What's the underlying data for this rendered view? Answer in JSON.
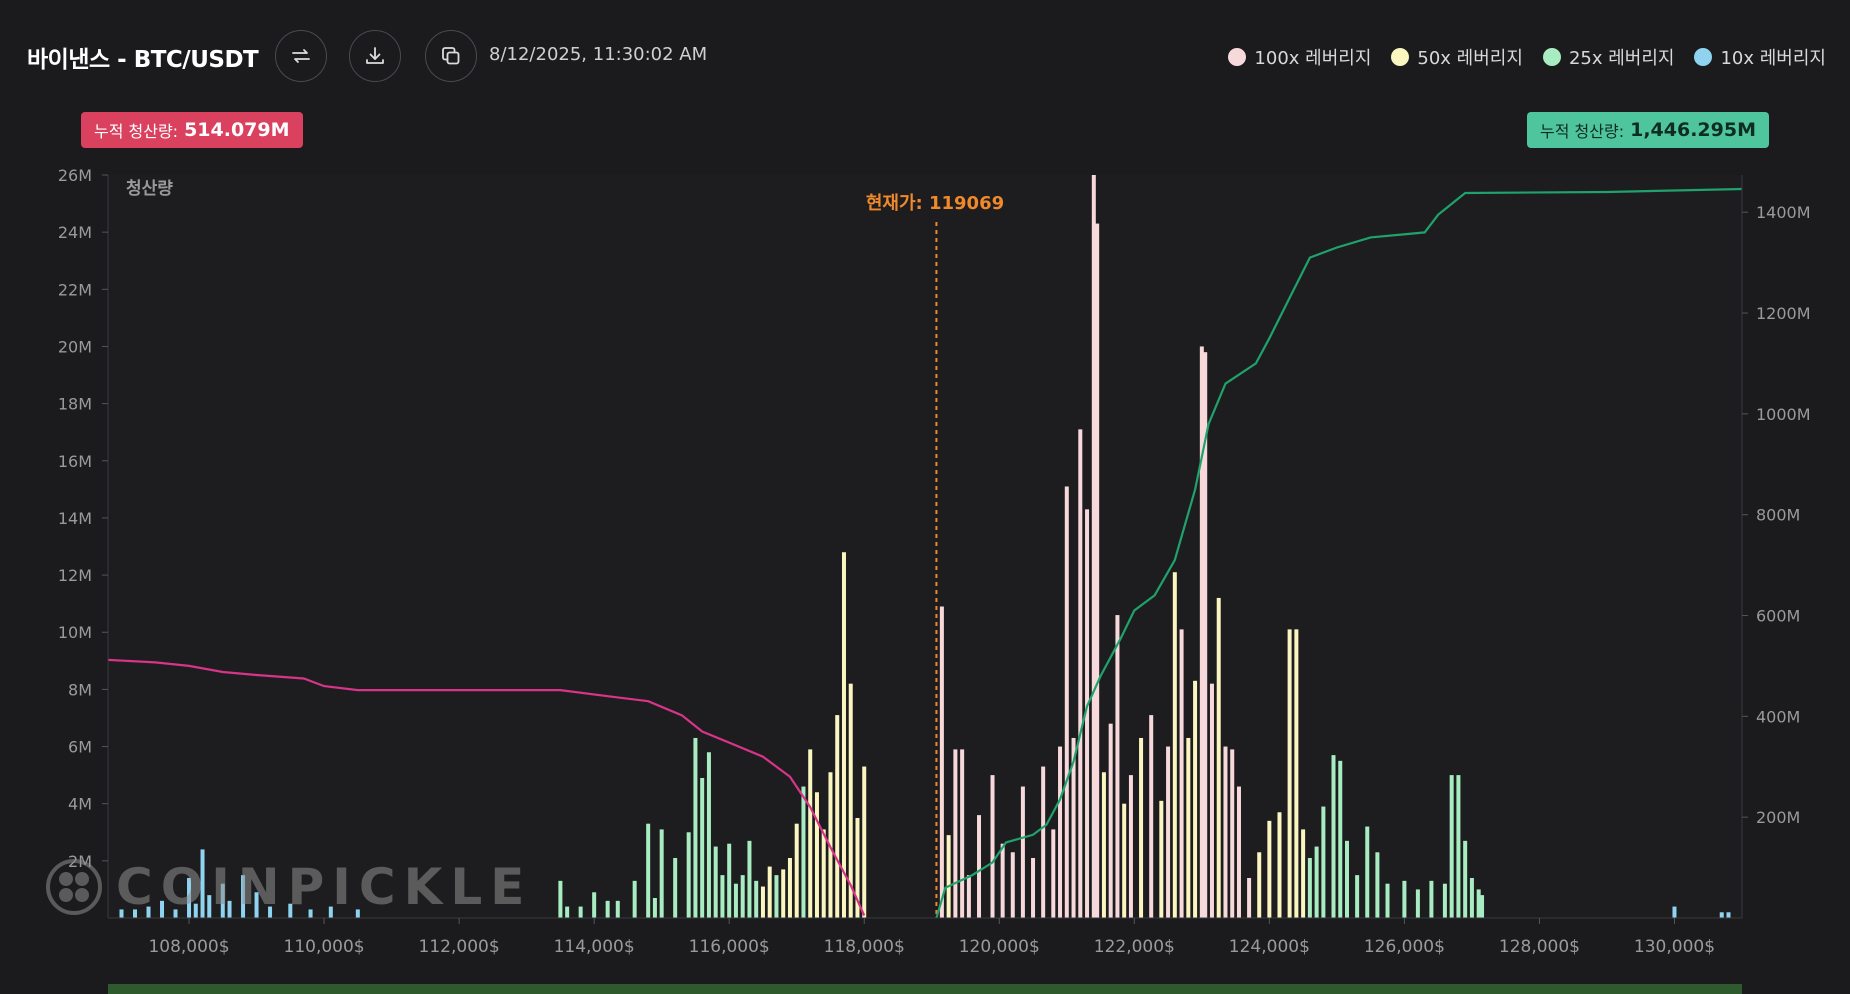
{
  "header": {
    "title": "바이낸스 - BTC/USDT",
    "timestamp": "8/12/2025, 11:30:02 AM",
    "buttons": [
      {
        "icon": "swap-icon"
      },
      {
        "icon": "download-icon"
      },
      {
        "icon": "copy-icon"
      }
    ]
  },
  "legend": [
    {
      "label": "100x 레버리지",
      "color": "#f7d9dc"
    },
    {
      "label": "50x 레버리지",
      "color": "#fbf5c0"
    },
    {
      "label": "25x 레버리지",
      "color": "#a8ecc1"
    },
    {
      "label": "10x 레버리지",
      "color": "#8fd3f0"
    }
  ],
  "badges": {
    "left": {
      "label": "누적 청산량:",
      "value": "514.079M",
      "color": "#d9415f"
    },
    "right": {
      "label": "누적 청산량:",
      "value": "1,446.295M",
      "color": "#4fc59d"
    }
  },
  "watermark": "COINPICKLE",
  "chart_data": {
    "type": "bar",
    "ylabel": "청산량",
    "current_price_label": "현재가: 119069",
    "current_price": 119069,
    "x_range": [
      106800,
      131000
    ],
    "x_ticks": [
      108000,
      110000,
      112000,
      114000,
      116000,
      118000,
      120000,
      122000,
      124000,
      126000,
      128000,
      130000
    ],
    "x_tick_labels": [
      "108,000$",
      "110,000$",
      "112,000$",
      "114,000$",
      "116,000$",
      "118,000$",
      "120,000$",
      "122,000$",
      "124,000$",
      "126,000$",
      "128,000$",
      "130,000$"
    ],
    "y_left_range": [
      0,
      26
    ],
    "y_left_ticks": [
      2,
      4,
      6,
      8,
      10,
      12,
      14,
      16,
      18,
      20,
      22,
      24,
      26
    ],
    "y_left_tick_labels": [
      "2M",
      "4M",
      "6M",
      "8M",
      "10M",
      "12M",
      "14M",
      "16M",
      "18M",
      "20M",
      "22M",
      "24M",
      "26M"
    ],
    "y_right_range": [
      0,
      1450
    ],
    "y_right_ticks": [
      200,
      400,
      600,
      800,
      1000,
      1200,
      1400
    ],
    "y_right_tick_labels": [
      "200M",
      "400M",
      "600M",
      "800M",
      "1000M",
      "1200M",
      "1400M"
    ],
    "bars": [
      {
        "x": 107000,
        "y": 0.3,
        "lev": "10x"
      },
      {
        "x": 107200,
        "y": 0.3,
        "lev": "10x"
      },
      {
        "x": 107400,
        "y": 0.4,
        "lev": "10x"
      },
      {
        "x": 107600,
        "y": 0.6,
        "lev": "10x"
      },
      {
        "x": 107800,
        "y": 0.3,
        "lev": "10x"
      },
      {
        "x": 108000,
        "y": 1.4,
        "lev": "10x"
      },
      {
        "x": 108100,
        "y": 0.5,
        "lev": "10x"
      },
      {
        "x": 108200,
        "y": 2.4,
        "lev": "10x"
      },
      {
        "x": 108300,
        "y": 0.8,
        "lev": "10x"
      },
      {
        "x": 108500,
        "y": 1.2,
        "lev": "10x"
      },
      {
        "x": 108600,
        "y": 0.6,
        "lev": "10x"
      },
      {
        "x": 108800,
        "y": 1.5,
        "lev": "10x"
      },
      {
        "x": 109000,
        "y": 0.9,
        "lev": "10x"
      },
      {
        "x": 109200,
        "y": 0.4,
        "lev": "10x"
      },
      {
        "x": 109500,
        "y": 0.5,
        "lev": "10x"
      },
      {
        "x": 109800,
        "y": 0.3,
        "lev": "10x"
      },
      {
        "x": 110100,
        "y": 0.4,
        "lev": "10x"
      },
      {
        "x": 110500,
        "y": 0.3,
        "lev": "10x"
      },
      {
        "x": 113500,
        "y": 1.3,
        "lev": "25x"
      },
      {
        "x": 113600,
        "y": 0.4,
        "lev": "25x"
      },
      {
        "x": 113800,
        "y": 0.4,
        "lev": "25x"
      },
      {
        "x": 114000,
        "y": 0.9,
        "lev": "25x"
      },
      {
        "x": 114200,
        "y": 0.6,
        "lev": "25x"
      },
      {
        "x": 114350,
        "y": 0.6,
        "lev": "25x"
      },
      {
        "x": 114600,
        "y": 1.3,
        "lev": "25x"
      },
      {
        "x": 114800,
        "y": 3.3,
        "lev": "25x"
      },
      {
        "x": 114900,
        "y": 0.7,
        "lev": "25x"
      },
      {
        "x": 115000,
        "y": 3.1,
        "lev": "25x"
      },
      {
        "x": 115200,
        "y": 2.1,
        "lev": "25x"
      },
      {
        "x": 115400,
        "y": 3.0,
        "lev": "25x"
      },
      {
        "x": 115500,
        "y": 6.3,
        "lev": "25x"
      },
      {
        "x": 115600,
        "y": 4.9,
        "lev": "25x"
      },
      {
        "x": 115700,
        "y": 5.8,
        "lev": "25x"
      },
      {
        "x": 115800,
        "y": 2.5,
        "lev": "25x"
      },
      {
        "x": 115900,
        "y": 1.5,
        "lev": "25x"
      },
      {
        "x": 116000,
        "y": 2.6,
        "lev": "25x"
      },
      {
        "x": 116100,
        "y": 1.2,
        "lev": "25x"
      },
      {
        "x": 116200,
        "y": 1.5,
        "lev": "25x"
      },
      {
        "x": 116300,
        "y": 2.7,
        "lev": "25x"
      },
      {
        "x": 116400,
        "y": 1.3,
        "lev": "25x"
      },
      {
        "x": 116500,
        "y": 1.1,
        "lev": "50x"
      },
      {
        "x": 116600,
        "y": 1.8,
        "lev": "50x"
      },
      {
        "x": 116700,
        "y": 1.5,
        "lev": "25x"
      },
      {
        "x": 116800,
        "y": 1.7,
        "lev": "50x"
      },
      {
        "x": 116900,
        "y": 2.1,
        "lev": "50x"
      },
      {
        "x": 117000,
        "y": 3.3,
        "lev": "50x"
      },
      {
        "x": 117100,
        "y": 4.6,
        "lev": "25x"
      },
      {
        "x": 117200,
        "y": 5.9,
        "lev": "50x"
      },
      {
        "x": 117300,
        "y": 4.4,
        "lev": "50x"
      },
      {
        "x": 117400,
        "y": 3.1,
        "lev": "50x"
      },
      {
        "x": 117500,
        "y": 5.1,
        "lev": "50x"
      },
      {
        "x": 117600,
        "y": 7.1,
        "lev": "50x"
      },
      {
        "x": 117700,
        "y": 12.8,
        "lev": "50x"
      },
      {
        "x": 117800,
        "y": 8.2,
        "lev": "50x"
      },
      {
        "x": 117900,
        "y": 3.5,
        "lev": "50x"
      },
      {
        "x": 118000,
        "y": 5.3,
        "lev": "50x"
      },
      {
        "x": 119150,
        "y": 10.9,
        "lev": "100x"
      },
      {
        "x": 119250,
        "y": 2.9,
        "lev": "50x"
      },
      {
        "x": 119350,
        "y": 5.9,
        "lev": "100x"
      },
      {
        "x": 119450,
        "y": 5.9,
        "lev": "100x"
      },
      {
        "x": 119550,
        "y": 1.5,
        "lev": "100x"
      },
      {
        "x": 119700,
        "y": 3.6,
        "lev": "100x"
      },
      {
        "x": 119900,
        "y": 5.0,
        "lev": "100x"
      },
      {
        "x": 120050,
        "y": 2.6,
        "lev": "100x"
      },
      {
        "x": 120200,
        "y": 2.3,
        "lev": "100x"
      },
      {
        "x": 120350,
        "y": 4.6,
        "lev": "100x"
      },
      {
        "x": 120500,
        "y": 2.1,
        "lev": "100x"
      },
      {
        "x": 120650,
        "y": 5.3,
        "lev": "100x"
      },
      {
        "x": 120800,
        "y": 3.1,
        "lev": "100x"
      },
      {
        "x": 120900,
        "y": 6.0,
        "lev": "100x"
      },
      {
        "x": 121000,
        "y": 15.1,
        "lev": "100x"
      },
      {
        "x": 121100,
        "y": 6.3,
        "lev": "100x"
      },
      {
        "x": 121200,
        "y": 17.1,
        "lev": "100x"
      },
      {
        "x": 121300,
        "y": 14.3,
        "lev": "100x"
      },
      {
        "x": 121400,
        "y": 26.0,
        "lev": "100x"
      },
      {
        "x": 121450,
        "y": 24.3,
        "lev": "100x"
      },
      {
        "x": 121550,
        "y": 5.1,
        "lev": "50x"
      },
      {
        "x": 121650,
        "y": 6.8,
        "lev": "100x"
      },
      {
        "x": 121750,
        "y": 10.6,
        "lev": "100x"
      },
      {
        "x": 121850,
        "y": 4.0,
        "lev": "50x"
      },
      {
        "x": 121950,
        "y": 5.0,
        "lev": "100x"
      },
      {
        "x": 122100,
        "y": 6.3,
        "lev": "50x"
      },
      {
        "x": 122250,
        "y": 7.1,
        "lev": "100x"
      },
      {
        "x": 122400,
        "y": 4.1,
        "lev": "50x"
      },
      {
        "x": 122500,
        "y": 6.0,
        "lev": "100x"
      },
      {
        "x": 122600,
        "y": 12.1,
        "lev": "50x"
      },
      {
        "x": 122700,
        "y": 10.1,
        "lev": "100x"
      },
      {
        "x": 122800,
        "y": 6.3,
        "lev": "50x"
      },
      {
        "x": 122900,
        "y": 8.3,
        "lev": "50x"
      },
      {
        "x": 123000,
        "y": 20.0,
        "lev": "100x"
      },
      {
        "x": 123050,
        "y": 19.8,
        "lev": "100x"
      },
      {
        "x": 123150,
        "y": 8.2,
        "lev": "100x"
      },
      {
        "x": 123250,
        "y": 11.2,
        "lev": "50x"
      },
      {
        "x": 123350,
        "y": 6.0,
        "lev": "100x"
      },
      {
        "x": 123450,
        "y": 5.9,
        "lev": "100x"
      },
      {
        "x": 123550,
        "y": 4.6,
        "lev": "100x"
      },
      {
        "x": 123700,
        "y": 1.4,
        "lev": "100x"
      },
      {
        "x": 123850,
        "y": 2.3,
        "lev": "50x"
      },
      {
        "x": 124000,
        "y": 3.4,
        "lev": "50x"
      },
      {
        "x": 124150,
        "y": 3.7,
        "lev": "50x"
      },
      {
        "x": 124300,
        "y": 10.1,
        "lev": "50x"
      },
      {
        "x": 124400,
        "y": 10.1,
        "lev": "50x"
      },
      {
        "x": 124500,
        "y": 3.1,
        "lev": "50x"
      },
      {
        "x": 124600,
        "y": 2.1,
        "lev": "25x"
      },
      {
        "x": 124700,
        "y": 2.5,
        "lev": "25x"
      },
      {
        "x": 124800,
        "y": 3.9,
        "lev": "25x"
      },
      {
        "x": 124950,
        "y": 5.7,
        "lev": "25x"
      },
      {
        "x": 125050,
        "y": 5.5,
        "lev": "25x"
      },
      {
        "x": 125150,
        "y": 2.7,
        "lev": "25x"
      },
      {
        "x": 125300,
        "y": 1.5,
        "lev": "25x"
      },
      {
        "x": 125450,
        "y": 3.2,
        "lev": "25x"
      },
      {
        "x": 125600,
        "y": 2.3,
        "lev": "25x"
      },
      {
        "x": 125750,
        "y": 1.2,
        "lev": "25x"
      },
      {
        "x": 126000,
        "y": 1.3,
        "lev": "25x"
      },
      {
        "x": 126200,
        "y": 1.0,
        "lev": "25x"
      },
      {
        "x": 126400,
        "y": 1.3,
        "lev": "25x"
      },
      {
        "x": 126600,
        "y": 1.2,
        "lev": "25x"
      },
      {
        "x": 126700,
        "y": 5.0,
        "lev": "25x"
      },
      {
        "x": 126800,
        "y": 5.0,
        "lev": "25x"
      },
      {
        "x": 126900,
        "y": 2.7,
        "lev": "25x"
      },
      {
        "x": 127000,
        "y": 1.4,
        "lev": "25x"
      },
      {
        "x": 127100,
        "y": 1.0,
        "lev": "25x"
      },
      {
        "x": 127150,
        "y": 0.8,
        "lev": "25x"
      },
      {
        "x": 130000,
        "y": 0.4,
        "lev": "10x"
      },
      {
        "x": 130700,
        "y": 0.2,
        "lev": "10x"
      },
      {
        "x": 130800,
        "y": 0.2,
        "lev": "10x"
      }
    ],
    "cumulative_short": {
      "color": "#d8348a",
      "points": [
        [
          106800,
          512
        ],
        [
          107500,
          507
        ],
        [
          108000,
          500
        ],
        [
          108500,
          488
        ],
        [
          109000,
          482
        ],
        [
          109700,
          475
        ],
        [
          110000,
          460
        ],
        [
          110500,
          452
        ],
        [
          113500,
          452
        ],
        [
          114200,
          440
        ],
        [
          114800,
          430
        ],
        [
          115300,
          402
        ],
        [
          115600,
          370
        ],
        [
          116000,
          348
        ],
        [
          116500,
          320
        ],
        [
          116900,
          280
        ],
        [
          117200,
          220
        ],
        [
          117500,
          140
        ],
        [
          117800,
          65
        ],
        [
          118000,
          5
        ]
      ]
    },
    "cumulative_long": {
      "color": "#1fa26b",
      "points": [
        [
          119069,
          0
        ],
        [
          119200,
          60
        ],
        [
          119600,
          85
        ],
        [
          119900,
          110
        ],
        [
          120100,
          150
        ],
        [
          120500,
          165
        ],
        [
          120700,
          185
        ],
        [
          120900,
          235
        ],
        [
          121100,
          310
        ],
        [
          121300,
          420
        ],
        [
          121500,
          480
        ],
        [
          121800,
          555
        ],
        [
          122000,
          610
        ],
        [
          122300,
          640
        ],
        [
          122600,
          710
        ],
        [
          122900,
          850
        ],
        [
          123100,
          980
        ],
        [
          123350,
          1060
        ],
        [
          123800,
          1100
        ],
        [
          124000,
          1150
        ],
        [
          124300,
          1230
        ],
        [
          124600,
          1310
        ],
        [
          125000,
          1330
        ],
        [
          125500,
          1350
        ],
        [
          126300,
          1360
        ],
        [
          126500,
          1395
        ],
        [
          126900,
          1438
        ],
        [
          129000,
          1440
        ],
        [
          131000,
          1446
        ]
      ]
    },
    "colors": {
      "100x": "#f7d9dc",
      "50x": "#fbf5c0",
      "25x": "#a8ecc1",
      "10x": "#8fd3f0",
      "current": "#f0892b"
    }
  }
}
